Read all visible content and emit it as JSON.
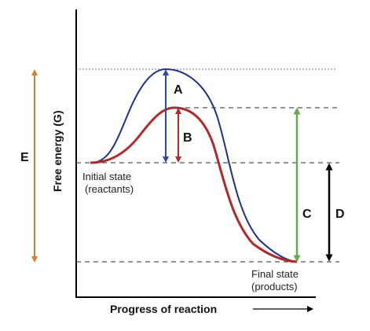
{
  "axes": {
    "y_label": "Free energy (G)",
    "x_label": "Progress of reaction",
    "x_arrow_glyph": "——→"
  },
  "states": {
    "initial_line1": "Initial state",
    "initial_line2": "(reactants)",
    "final_line1": "Final state",
    "final_line2": "(products)"
  },
  "arrow_labels": {
    "a": "A",
    "b": "B",
    "c": "C",
    "d": "D",
    "e": "E"
  },
  "colors": {
    "uncatalyzed_curve": "#1f2f8f",
    "catalyzed_curve": "#b02a2a",
    "arrow_a": "#2b4aa8",
    "arrow_b": "#b02a2a",
    "arrow_c": "#6aa84f",
    "arrow_d": "#000000",
    "arrow_e": "#e07b2a",
    "axis": "#000000",
    "reference_lines": "#555555"
  }
}
